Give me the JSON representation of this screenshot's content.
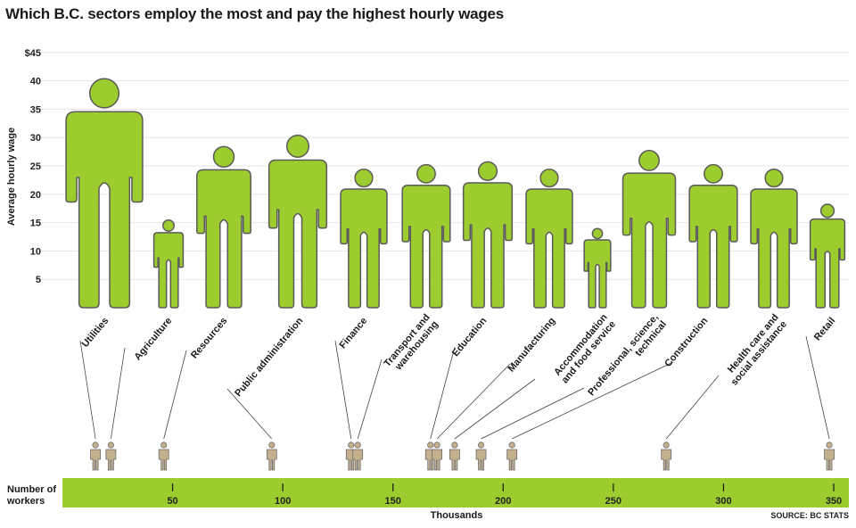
{
  "title": "Which B.C. sectors employ the most and pay the highest hourly wages",
  "source": "SOURCE: BC STATS",
  "colors": {
    "figure_fill": "#9ccc2e",
    "figure_stroke": "#5a5a5a",
    "small_figure_fill": "#c5b08e",
    "band": "#9ccc2e",
    "grid": "#e6e6e6",
    "leader": "#444444"
  },
  "chart_data": {
    "type": "scatter",
    "title": "Which B.C. sectors employ the most and pay the highest hourly wages",
    "ylabel": "Average hourly wage",
    "ylim": [
      0,
      45
    ],
    "yticks": [
      "5",
      "10",
      "15",
      "20",
      "25",
      "30",
      "35",
      "40",
      "$45"
    ],
    "xlabel_row": "Number of workers",
    "xlabel_units": "Thousands",
    "xlim": [
      0,
      355
    ],
    "xticks": [
      "50",
      "100",
      "150",
      "200",
      "250",
      "300",
      "350"
    ],
    "sectors": [
      {
        "name": "Utilities",
        "wage": 40.5,
        "workers": 15
      },
      {
        "name": "Agriculture",
        "wage": 15.5,
        "workers": 22
      },
      {
        "name": "Resources",
        "wage": 28.5,
        "workers": 46
      },
      {
        "name": "Public administration",
        "wage": 30.5,
        "workers": 95
      },
      {
        "name": "Finance",
        "wage": 24.5,
        "workers": 131
      },
      {
        "name": "Transport and warehousing",
        "wage": 25.3,
        "workers": 134
      },
      {
        "name": "Education",
        "wage": 25.8,
        "workers": 167
      },
      {
        "name": "Manufacturing",
        "wage": 24.5,
        "workers": 170
      },
      {
        "name": "Accommodation and food service",
        "wage": 14.0,
        "workers": 178
      },
      {
        "name": "Professional, science, technical",
        "wage": 27.8,
        "workers": 190
      },
      {
        "name": "Construction",
        "wage": 25.3,
        "workers": 204
      },
      {
        "name": "Health care and social assistance",
        "wage": 24.5,
        "workers": 274
      },
      {
        "name": "Retail",
        "wage": 18.3,
        "workers": 348
      }
    ]
  }
}
